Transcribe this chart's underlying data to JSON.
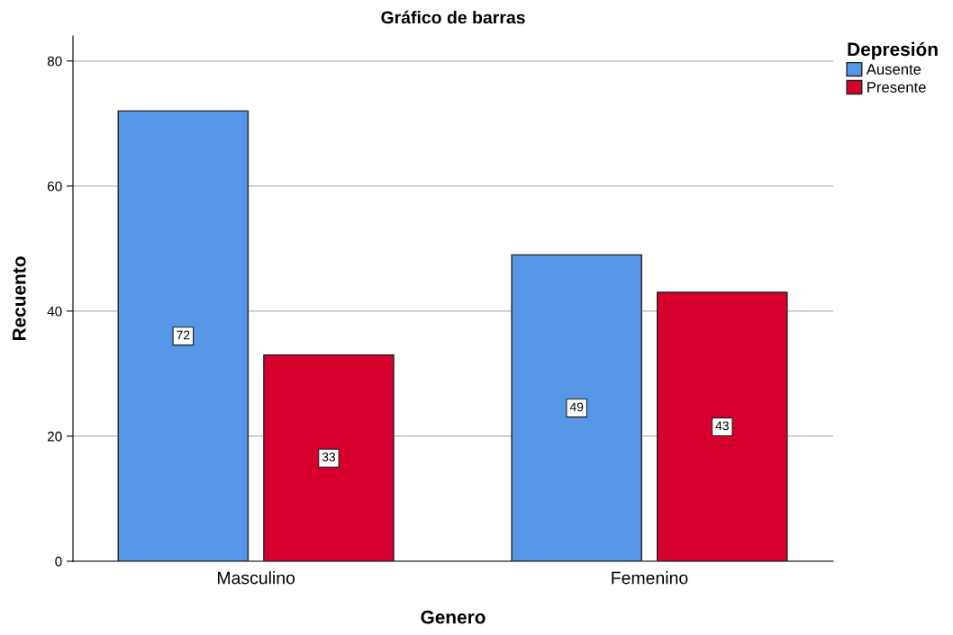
{
  "chart_data": {
    "type": "bar",
    "title": "Gráfico de barras",
    "xlabel": "Genero",
    "ylabel": "Recuento",
    "legend_title": "Depresión",
    "categories": [
      "Masculino",
      "Femenino"
    ],
    "series": [
      {
        "name": "Ausente",
        "color": "#5596e6",
        "values": [
          72,
          49
        ]
      },
      {
        "name": "Presente",
        "color": "#d6002e",
        "values": [
          33,
          43
        ]
      }
    ],
    "ylim": [
      0,
      84
    ],
    "yticks": [
      0,
      20,
      40,
      60,
      80
    ],
    "grid": "y",
    "legend": "top right",
    "data_labels": true
  }
}
